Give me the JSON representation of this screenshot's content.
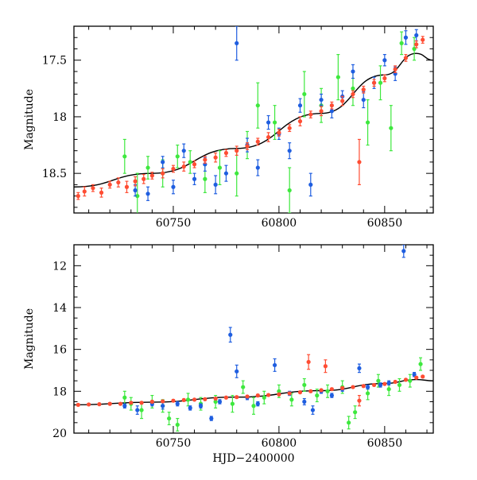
{
  "chart_data": [
    {
      "type": "scatter",
      "panel": "top",
      "title": "",
      "xlabel": "",
      "ylabel": "Magnitude",
      "xlim": [
        60703,
        60873
      ],
      "ylim": [
        18.85,
        17.2
      ],
      "y_inverted": true,
      "xticks": [
        "60750",
        "60800",
        "60850"
      ],
      "yticks": [
        "17.5",
        "18",
        "18.5"
      ],
      "model_curve": {
        "x": [
          60703,
          60740,
          60780,
          60820,
          60850,
          60865,
          60873
        ],
        "y": [
          18.62,
          18.5,
          18.28,
          17.97,
          17.63,
          17.44,
          17.5
        ]
      },
      "series": [
        {
          "color": "#ff4d33",
          "points": [
            [
              60705,
              18.7,
              0.03
            ],
            [
              60708,
              18.66,
              0.04
            ],
            [
              60712,
              18.63,
              0.03
            ],
            [
              60716,
              18.67,
              0.04
            ],
            [
              60720,
              18.6,
              0.03
            ],
            [
              60724,
              18.58,
              0.04
            ],
            [
              60728,
              18.62,
              0.05
            ],
            [
              60732,
              18.57,
              0.04
            ],
            [
              60736,
              18.55,
              0.04
            ],
            [
              60740,
              18.52,
              0.03
            ],
            [
              60745,
              18.5,
              0.04
            ],
            [
              60750,
              18.46,
              0.03
            ],
            [
              60755,
              18.44,
              0.04
            ],
            [
              60760,
              18.42,
              0.03
            ],
            [
              60765,
              18.38,
              0.03
            ],
            [
              60770,
              18.36,
              0.04
            ],
            [
              60775,
              18.32,
              0.03
            ],
            [
              60780,
              18.3,
              0.04
            ],
            [
              60785,
              18.26,
              0.03
            ],
            [
              60790,
              18.22,
              0.03
            ],
            [
              60795,
              18.18,
              0.04
            ],
            [
              60800,
              18.14,
              0.03
            ],
            [
              60805,
              18.1,
              0.03
            ],
            [
              60810,
              18.04,
              0.04
            ],
            [
              60815,
              17.98,
              0.03
            ],
            [
              60820,
              17.95,
              0.04
            ],
            [
              60825,
              17.9,
              0.03
            ],
            [
              60830,
              17.86,
              0.04
            ],
            [
              60835,
              17.8,
              0.03
            ],
            [
              60838,
              18.4,
              0.2
            ],
            [
              60840,
              17.76,
              0.03
            ],
            [
              60845,
              17.7,
              0.03
            ],
            [
              60850,
              17.66,
              0.03
            ],
            [
              60855,
              17.58,
              0.03
            ],
            [
              60860,
              17.48,
              0.03
            ],
            [
              60865,
              17.36,
              0.03
            ],
            [
              60868,
              17.32,
              0.03
            ]
          ]
        },
        {
          "color": "#1f5ee0",
          "points": [
            [
              60732,
              18.65,
              0.05
            ],
            [
              60738,
              18.68,
              0.06
            ],
            [
              60745,
              18.4,
              0.05
            ],
            [
              60750,
              18.62,
              0.06
            ],
            [
              60755,
              18.3,
              0.06
            ],
            [
              60760,
              18.55,
              0.05
            ],
            [
              60765,
              18.42,
              0.06
            ],
            [
              60770,
              18.6,
              0.08
            ],
            [
              60775,
              18.5,
              0.07
            ],
            [
              60780,
              17.35,
              0.15
            ],
            [
              60785,
              18.25,
              0.06
            ],
            [
              60790,
              18.45,
              0.07
            ],
            [
              60795,
              18.05,
              0.06
            ],
            [
              60800,
              18.15,
              0.05
            ],
            [
              60805,
              18.3,
              0.07
            ],
            [
              60810,
              17.9,
              0.06
            ],
            [
              60815,
              18.6,
              0.1
            ],
            [
              60820,
              17.85,
              0.05
            ],
            [
              60825,
              17.95,
              0.06
            ],
            [
              60830,
              17.82,
              0.05
            ],
            [
              60835,
              17.6,
              0.06
            ],
            [
              60840,
              17.85,
              0.07
            ],
            [
              60845,
              17.7,
              0.05
            ],
            [
              60850,
              17.5,
              0.05
            ],
            [
              60855,
              17.62,
              0.06
            ],
            [
              60860,
              17.3,
              0.06
            ],
            [
              60865,
              17.28,
              0.05
            ]
          ]
        },
        {
          "color": "#3ee83e",
          "points": [
            [
              60727,
              18.35,
              0.15
            ],
            [
              60733,
              18.7,
              0.2
            ],
            [
              60738,
              18.45,
              0.1
            ],
            [
              60745,
              18.5,
              0.12
            ],
            [
              60752,
              18.35,
              0.1
            ],
            [
              60758,
              18.4,
              0.1
            ],
            [
              60765,
              18.55,
              0.12
            ],
            [
              60772,
              18.45,
              0.15
            ],
            [
              60780,
              18.5,
              0.2
            ],
            [
              60785,
              18.25,
              0.12
            ],
            [
              60790,
              17.9,
              0.2
            ],
            [
              60798,
              18.05,
              0.15
            ],
            [
              60805,
              18.65,
              0.2
            ],
            [
              60812,
              17.8,
              0.2
            ],
            [
              60820,
              17.9,
              0.15
            ],
            [
              60828,
              17.65,
              0.2
            ],
            [
              60835,
              17.75,
              0.15
            ],
            [
              60842,
              18.05,
              0.2
            ],
            [
              60848,
              17.7,
              0.15
            ],
            [
              60853,
              18.1,
              0.2
            ],
            [
              60858,
              17.35,
              0.1
            ],
            [
              60864,
              17.4,
              0.1
            ]
          ]
        }
      ]
    },
    {
      "type": "scatter",
      "panel": "bottom",
      "title": "",
      "xlabel": "HJD−2400000",
      "ylabel": "Magnitude",
      "xlim": [
        60703,
        60873
      ],
      "ylim": [
        20,
        11
      ],
      "y_inverted": true,
      "xticks": [
        "60750",
        "60800",
        "60850"
      ],
      "yticks": [
        "12",
        "14",
        "16",
        "18",
        "20"
      ],
      "model_curve": {
        "x": [
          60703,
          60740,
          60780,
          60820,
          60850,
          60865,
          60873
        ],
        "y": [
          18.65,
          18.52,
          18.28,
          17.97,
          17.63,
          17.44,
          17.5
        ]
      },
      "series": [
        {
          "color": "#ff4d33",
          "points": [
            [
              60705,
              18.65,
              0.05
            ],
            [
              60710,
              18.63,
              0.05
            ],
            [
              60715,
              18.62,
              0.05
            ],
            [
              60720,
              18.6,
              0.05
            ],
            [
              60725,
              18.6,
              0.05
            ],
            [
              60730,
              18.55,
              0.05
            ],
            [
              60735,
              18.55,
              0.05
            ],
            [
              60740,
              18.5,
              0.05
            ],
            [
              60745,
              18.48,
              0.05
            ],
            [
              60750,
              18.45,
              0.05
            ],
            [
              60755,
              18.42,
              0.05
            ],
            [
              60760,
              18.4,
              0.05
            ],
            [
              60765,
              18.38,
              0.05
            ],
            [
              60770,
              18.35,
              0.05
            ],
            [
              60775,
              18.3,
              0.05
            ],
            [
              60780,
              18.28,
              0.05
            ],
            [
              60785,
              18.25,
              0.05
            ],
            [
              60790,
              18.2,
              0.05
            ],
            [
              60795,
              18.18,
              0.05
            ],
            [
              60800,
              18.15,
              0.05
            ],
            [
              60805,
              18.1,
              0.05
            ],
            [
              60810,
              18.05,
              0.05
            ],
            [
              60814,
              16.6,
              0.35
            ],
            [
              60815,
              18.0,
              0.05
            ],
            [
              60820,
              17.95,
              0.05
            ],
            [
              60822,
              16.8,
              0.3
            ],
            [
              60825,
              17.9,
              0.05
            ],
            [
              60830,
              17.85,
              0.05
            ],
            [
              60835,
              17.8,
              0.05
            ],
            [
              60838,
              18.45,
              0.25
            ],
            [
              60840,
              17.75,
              0.05
            ],
            [
              60845,
              17.7,
              0.05
            ],
            [
              60850,
              17.65,
              0.05
            ],
            [
              60855,
              17.55,
              0.05
            ],
            [
              60860,
              17.45,
              0.05
            ],
            [
              60865,
              17.35,
              0.05
            ],
            [
              60868,
              17.3,
              0.05
            ]
          ]
        },
        {
          "color": "#1f5ee0",
          "points": [
            [
              60727,
              18.7,
              0.1
            ],
            [
              60733,
              18.9,
              0.2
            ],
            [
              60740,
              18.6,
              0.1
            ],
            [
              60745,
              18.7,
              0.15
            ],
            [
              60752,
              18.6,
              0.1
            ],
            [
              60758,
              18.8,
              0.1
            ],
            [
              60763,
              18.7,
              0.1
            ],
            [
              60768,
              19.3,
              0.1
            ],
            [
              60772,
              18.5,
              0.1
            ],
            [
              60777,
              15.3,
              0.35
            ],
            [
              60780,
              17.05,
              0.3
            ],
            [
              60785,
              18.3,
              0.1
            ],
            [
              60790,
              18.6,
              0.1
            ],
            [
              60798,
              16.75,
              0.3
            ],
            [
              60805,
              18.1,
              0.1
            ],
            [
              60812,
              18.5,
              0.15
            ],
            [
              60816,
              18.9,
              0.2
            ],
            [
              60820,
              18.0,
              0.1
            ],
            [
              60825,
              18.2,
              0.1
            ],
            [
              60830,
              17.9,
              0.1
            ],
            [
              60838,
              16.9,
              0.2
            ],
            [
              60842,
              17.8,
              0.1
            ],
            [
              60848,
              17.7,
              0.1
            ],
            [
              60852,
              17.6,
              0.1
            ],
            [
              60859,
              11.3,
              0.3
            ],
            [
              60864,
              17.2,
              0.1
            ]
          ]
        },
        {
          "color": "#3ee83e",
          "points": [
            [
              60727,
              18.3,
              0.3
            ],
            [
              60730,
              18.6,
              0.3
            ],
            [
              60735,
              18.9,
              0.4
            ],
            [
              60740,
              18.5,
              0.3
            ],
            [
              60745,
              18.7,
              0.3
            ],
            [
              60748,
              19.3,
              0.3
            ],
            [
              60752,
              19.6,
              0.3
            ],
            [
              60757,
              18.4,
              0.3
            ],
            [
              60763,
              18.6,
              0.3
            ],
            [
              60770,
              18.5,
              0.3
            ],
            [
              60778,
              18.6,
              0.4
            ],
            [
              60783,
              17.8,
              0.3
            ],
            [
              60788,
              18.7,
              0.4
            ],
            [
              60793,
              18.3,
              0.3
            ],
            [
              60800,
              18.0,
              0.3
            ],
            [
              60806,
              18.4,
              0.3
            ],
            [
              60812,
              17.7,
              0.3
            ],
            [
              60818,
              18.2,
              0.3
            ],
            [
              60823,
              18.0,
              0.3
            ],
            [
              60830,
              17.8,
              0.3
            ],
            [
              60833,
              19.5,
              0.3
            ],
            [
              60836,
              19.0,
              0.3
            ],
            [
              60842,
              18.1,
              0.3
            ],
            [
              60847,
              17.5,
              0.3
            ],
            [
              60852,
              17.9,
              0.3
            ],
            [
              60857,
              17.7,
              0.3
            ],
            [
              60862,
              17.5,
              0.3
            ],
            [
              60867,
              16.7,
              0.3
            ]
          ]
        }
      ]
    }
  ]
}
